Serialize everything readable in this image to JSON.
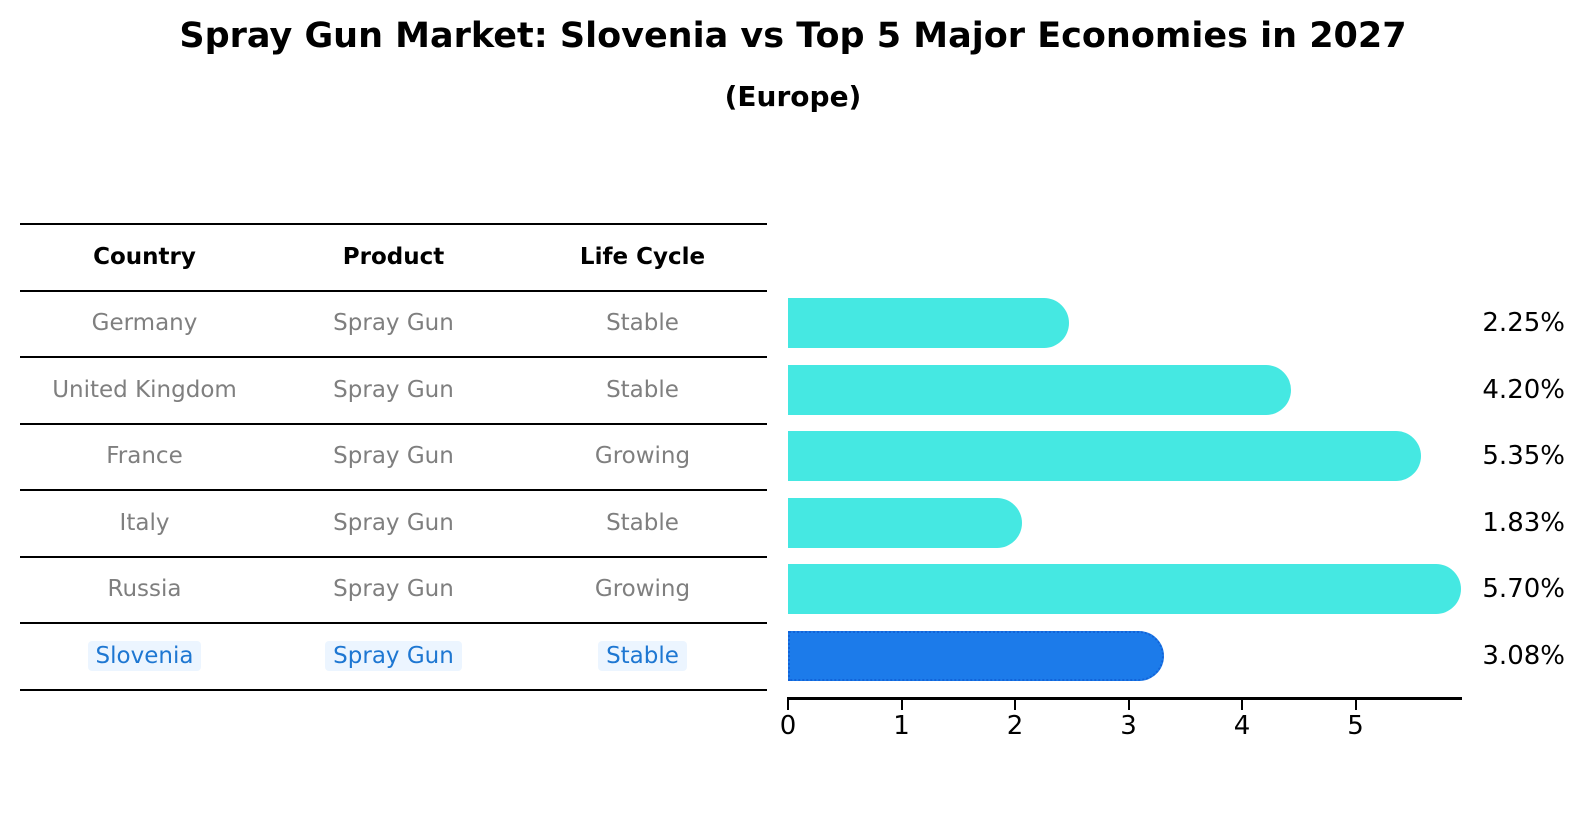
{
  "title": "Spray Gun Market: Slovenia vs Top 5 Major Economies in 2027",
  "subtitle": "(Europe)",
  "table": {
    "headers": {
      "country": "Country",
      "product": "Product",
      "life_cycle": "Life Cycle"
    },
    "rows": [
      {
        "country": "Germany",
        "product": "Spray Gun",
        "life_cycle": "Stable"
      },
      {
        "country": "United Kingdom",
        "product": "Spray Gun",
        "life_cycle": "Stable"
      },
      {
        "country": "France",
        "product": "Spray Gun",
        "life_cycle": "Growing"
      },
      {
        "country": "Italy",
        "product": "Spray Gun",
        "life_cycle": "Stable"
      },
      {
        "country": "Russia",
        "product": "Spray Gun",
        "life_cycle": "Growing"
      },
      {
        "country": "Slovenia",
        "product": "Spray Gun",
        "life_cycle": "Stable"
      }
    ]
  },
  "chart_data": {
    "type": "bar",
    "orientation": "horizontal",
    "title": "Spray Gun Market: Slovenia vs Top 5 Major Economies in 2027",
    "subtitle": "(Europe)",
    "categories": [
      "Germany",
      "United Kingdom",
      "France",
      "Italy",
      "Russia",
      "Slovenia"
    ],
    "values": [
      2.25,
      4.2,
      5.35,
      1.83,
      5.7,
      3.08
    ],
    "value_labels": [
      "2.25%",
      "4.20%",
      "5.35%",
      "1.83%",
      "5.70%",
      "3.08%"
    ],
    "highlight_index": 5,
    "highlight_category": "Slovenia",
    "xticks": [
      "0",
      "1",
      "2",
      "3",
      "4",
      "5"
    ],
    "xlim": [
      0,
      5.93
    ],
    "xlabel": "",
    "ylabel": "",
    "grid": false,
    "legend": false,
    "bar_color": "#45e8e2",
    "highlight_bar_color": "#1c7bea",
    "highlight_border_color": "#1263d8",
    "highlight_text_color": "#1e77d2"
  },
  "colors": {
    "background": "#ffffff",
    "bar": "#45e8e2",
    "highlight_bar": "#1c7bea",
    "highlight_border": "#1263d8",
    "table_text": "#7f7f7f",
    "header_text": "#000000",
    "highlight_text": "#1e77d2",
    "rule": "#000000",
    "value_label_text": "#000000"
  }
}
